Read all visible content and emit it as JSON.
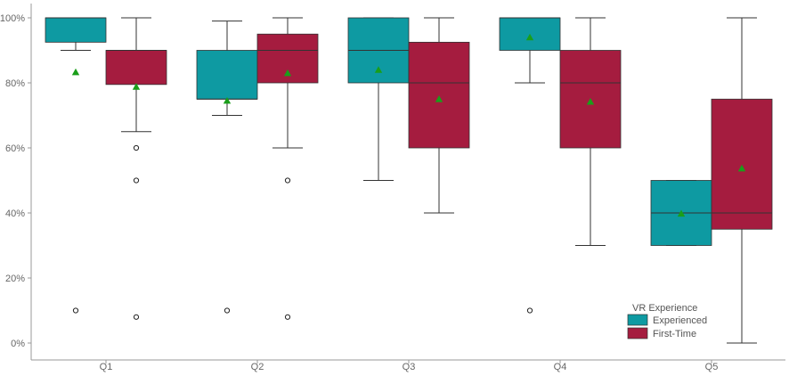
{
  "chart_data": {
    "type": "boxplot",
    "title": "",
    "xlabel": "",
    "ylabel": "",
    "ylim": [
      0,
      100
    ],
    "y_ticks": [
      0,
      20,
      40,
      60,
      80,
      100
    ],
    "y_tick_labels": [
      "0%",
      "20%",
      "40%",
      "60%",
      "80%",
      "100%"
    ],
    "categories": [
      "Q1",
      "Q2",
      "Q3",
      "Q4",
      "Q5"
    ],
    "grid": false,
    "legend": {
      "title": "VR Experience",
      "position": "bottom-right"
    },
    "mean_marker_color": "#1a9e1a",
    "series": [
      {
        "name": "Experienced",
        "color": "#0e9aa2",
        "boxes": [
          {
            "whisker_low": 90,
            "q1": 92.5,
            "median": 100,
            "q3": 100,
            "whisker_high": 100,
            "mean": 83.3,
            "outliers": [
              10
            ]
          },
          {
            "whisker_low": 70,
            "q1": 75,
            "median": 75,
            "q3": 90,
            "whisker_high": 99,
            "mean": 74.5,
            "outliers": [
              10
            ]
          },
          {
            "whisker_low": 50,
            "q1": 80,
            "median": 90,
            "q3": 100,
            "whisker_high": 100,
            "mean": 84,
            "outliers": []
          },
          {
            "whisker_low": 80,
            "q1": 90,
            "median": 100,
            "q3": 100,
            "whisker_high": 100,
            "mean": 94,
            "outliers": [
              10
            ]
          },
          {
            "whisker_low": 30,
            "q1": 30,
            "median": 40,
            "q3": 50,
            "whisker_high": 50,
            "mean": 39.8,
            "outliers": []
          }
        ]
      },
      {
        "name": "First-Time",
        "color": "#a51c3f",
        "boxes": [
          {
            "whisker_low": 65,
            "q1": 79.5,
            "median": 90,
            "q3": 90,
            "whisker_high": 100,
            "mean": 78.8,
            "outliers": [
              60,
              50,
              8
            ]
          },
          {
            "whisker_low": 60,
            "q1": 80,
            "median": 90,
            "q3": 95,
            "whisker_high": 100,
            "mean": 83,
            "outliers": [
              50,
              8
            ]
          },
          {
            "whisker_low": 40,
            "q1": 60,
            "median": 80,
            "q3": 92.5,
            "whisker_high": 100,
            "mean": 75,
            "outliers": []
          },
          {
            "whisker_low": 30,
            "q1": 60,
            "median": 80,
            "q3": 90,
            "whisker_high": 100,
            "mean": 74.2,
            "outliers": []
          },
          {
            "whisker_low": 0,
            "q1": 35,
            "median": 40,
            "q3": 75,
            "whisker_high": 100,
            "mean": 53.7,
            "outliers": []
          }
        ]
      }
    ]
  }
}
